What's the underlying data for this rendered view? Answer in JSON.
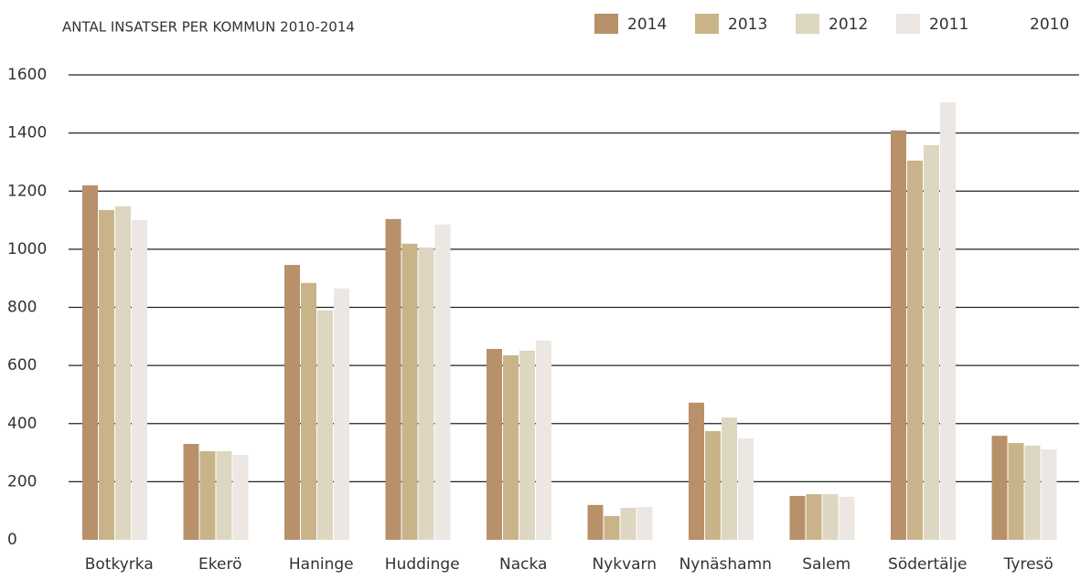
{
  "chart_data": {
    "type": "bar",
    "title": "ANTAL INSATSER PER KOMMUN 2010-2014",
    "categories": [
      "Botkyrka",
      "Ekerö",
      "Haninge",
      "Huddinge",
      "Nacka",
      "Nykvarn",
      "Nynäshamn",
      "Salem",
      "Södertälje",
      "Tyresö"
    ],
    "series": [
      {
        "name": "2014",
        "color": "#b8906a",
        "values": [
          1220,
          330,
          946,
          1104,
          657,
          120,
          472,
          151,
          1409,
          358
        ]
      },
      {
        "name": "2013",
        "color": "#c9b48a",
        "values": [
          1135,
          305,
          884,
          1019,
          635,
          82,
          374,
          157,
          1305,
          333
        ]
      },
      {
        "name": "2012",
        "color": "#ddd6c0",
        "values": [
          1148,
          305,
          790,
          1006,
          651,
          110,
          421,
          157,
          1358,
          324
        ]
      },
      {
        "name": "2011",
        "color": "#ece7e2",
        "values": [
          1100,
          292,
          865,
          1085,
          686,
          113,
          349,
          148,
          1506,
          311
        ]
      },
      {
        "name": "2010",
        "color": "#ffffff",
        "values": [
          null,
          null,
          null,
          null,
          null,
          null,
          null,
          null,
          null,
          null
        ]
      }
    ],
    "ylim": [
      0,
      1600
    ],
    "yticks": [
      0,
      200,
      400,
      600,
      800,
      1000,
      1200,
      1400,
      1600
    ],
    "grid": true
  }
}
